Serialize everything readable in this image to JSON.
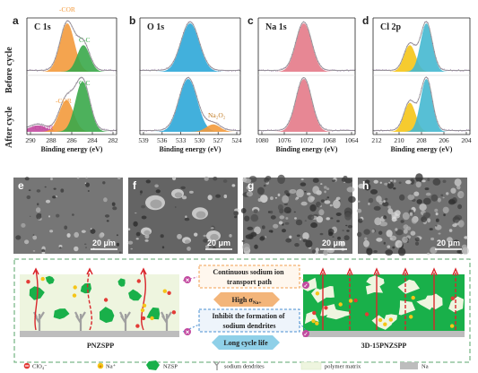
{
  "panel_letters": [
    "a",
    "b",
    "c",
    "d",
    "e",
    "f",
    "g",
    "h"
  ],
  "row_labels": {
    "before": "Before cycle",
    "after": "After cycle"
  },
  "xps_panels": [
    {
      "letter": "a",
      "title": "C 1s",
      "xlabel": "Binding energy (eV)",
      "ticks": [
        "290",
        "288",
        "286",
        "284",
        "282"
      ],
      "before_labels": [
        "-COR",
        "C-C"
      ],
      "after_labels": [
        "-COR",
        "C-C",
        "-COOR"
      ]
    },
    {
      "letter": "b",
      "title": "O 1s",
      "xlabel": "Binding energy (eV)",
      "ticks": [
        "539",
        "536",
        "533",
        "530",
        "527",
        "524"
      ],
      "before_labels": [],
      "after_labels": [
        "Na₂O₂"
      ]
    },
    {
      "letter": "c",
      "title": "Na 1s",
      "xlabel": "Binding energy (eV)",
      "ticks": [
        "1080",
        "1076",
        "1072",
        "1068",
        "1064"
      ],
      "before_labels": [],
      "after_labels": []
    },
    {
      "letter": "d",
      "title": "Cl 2p",
      "xlabel": "Binding energy (eV)",
      "ticks": [
        "212",
        "210",
        "208",
        "206",
        "204"
      ],
      "before_labels": [],
      "after_labels": []
    }
  ],
  "sem_panels": [
    {
      "letter": "e",
      "scale": "20 μm"
    },
    {
      "letter": "f",
      "scale": "20 μm"
    },
    {
      "letter": "g",
      "scale": "20 μm"
    },
    {
      "letter": "h",
      "scale": "20 μm"
    }
  ],
  "schematic": {
    "left_label": "PNZSPP",
    "right_label": "3D-15PNZSPP",
    "box1": "Continuous sodium ion transport path",
    "box1_lines": [
      "Continuous sodium ion",
      "transport path"
    ],
    "arrow1": "High σNa+",
    "arrow1_main": "High σ",
    "arrow1_sub": "Na+",
    "box2": "Inhibit the formation of sodium dendrites",
    "box2_lines": [
      "Inhibit the formation of",
      "sodium dendrites"
    ],
    "arrow2": "Long cycle life"
  },
  "legend": [
    {
      "symbol": "perchlorate-dot",
      "label": "ClO₄⁻"
    },
    {
      "symbol": "sodium-ion-dot",
      "label": "Na⁺"
    },
    {
      "symbol": "nzsp-particle",
      "label": "NZSP"
    },
    {
      "symbol": "dendrite",
      "label": "sodium dendrites"
    },
    {
      "symbol": "matrix-swatch",
      "label": "polymer matrix"
    },
    {
      "symbol": "na-swatch",
      "label": "Na"
    }
  ],
  "colors": {
    "orange": "#f39a3c",
    "green": "#3aa84a",
    "blue": "#2ea7d8",
    "pink": "#e47a88",
    "yellow": "#f5c518",
    "teal": "#45b8d0",
    "purple": "#c24aa0",
    "envelope": "#9a9a9a",
    "arrow_red": "#d9262c",
    "schematic_green": "#19b04a",
    "matrix": "#eef5df",
    "na_base": "#bdbdbd"
  }
}
